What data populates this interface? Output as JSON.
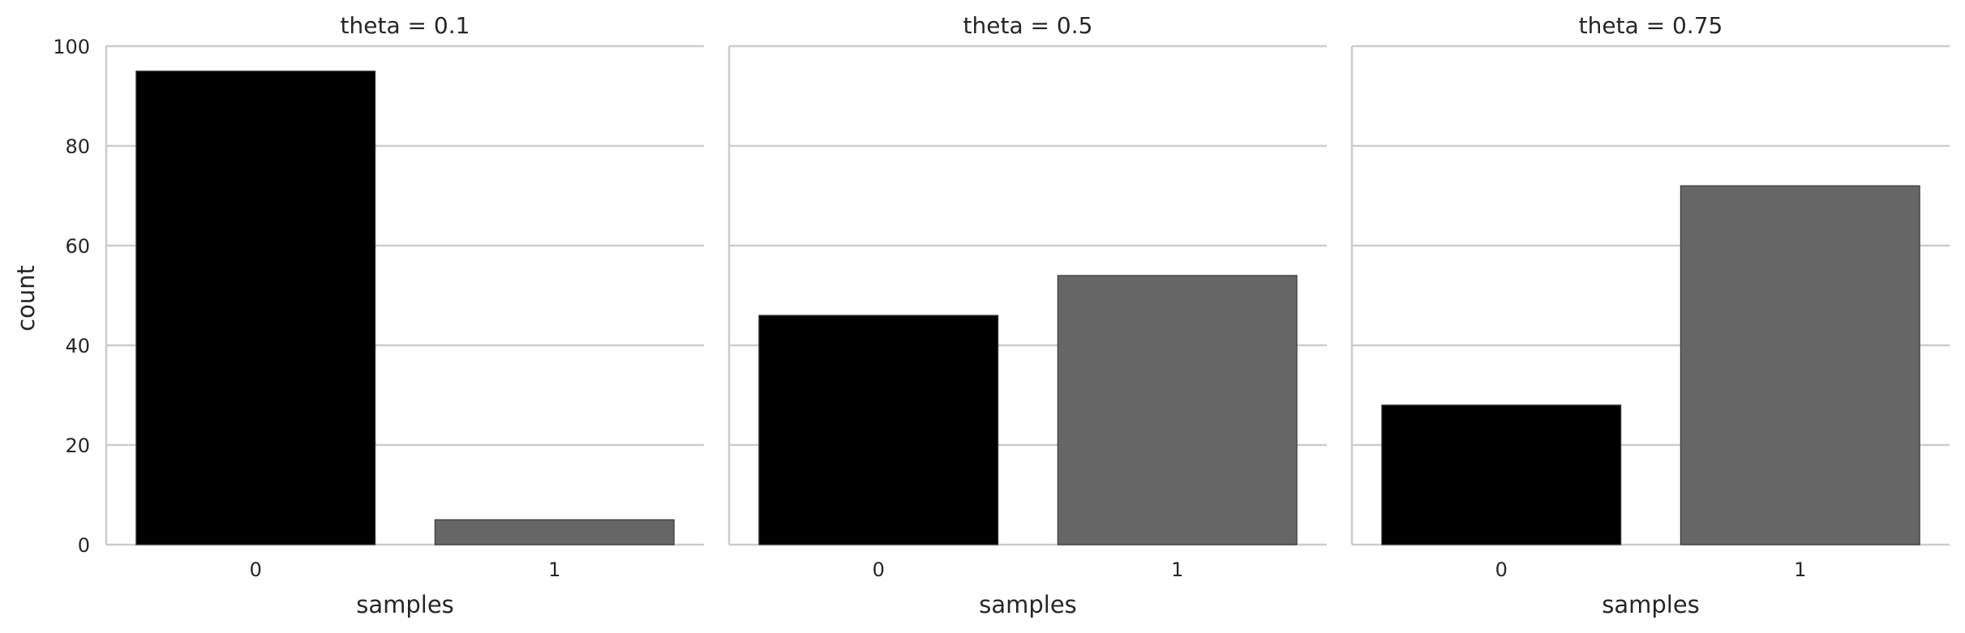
{
  "chart_data": {
    "type": "bar",
    "facet_variable": "theta",
    "ylabel": "count",
    "xlabel": "samples",
    "ylim": [
      0,
      100
    ],
    "yticks": [
      0,
      20,
      40,
      60,
      80,
      100
    ],
    "categories": [
      "0",
      "1"
    ],
    "colors": {
      "0": "#000000",
      "1": "#666666"
    },
    "grid": "horizontal",
    "panels": [
      {
        "title": "theta = 0.1",
        "values": [
          95,
          5
        ]
      },
      {
        "title": "theta = 0.5",
        "values": [
          46,
          54
        ]
      },
      {
        "title": "theta = 0.75",
        "values": [
          28,
          72
        ]
      }
    ]
  }
}
